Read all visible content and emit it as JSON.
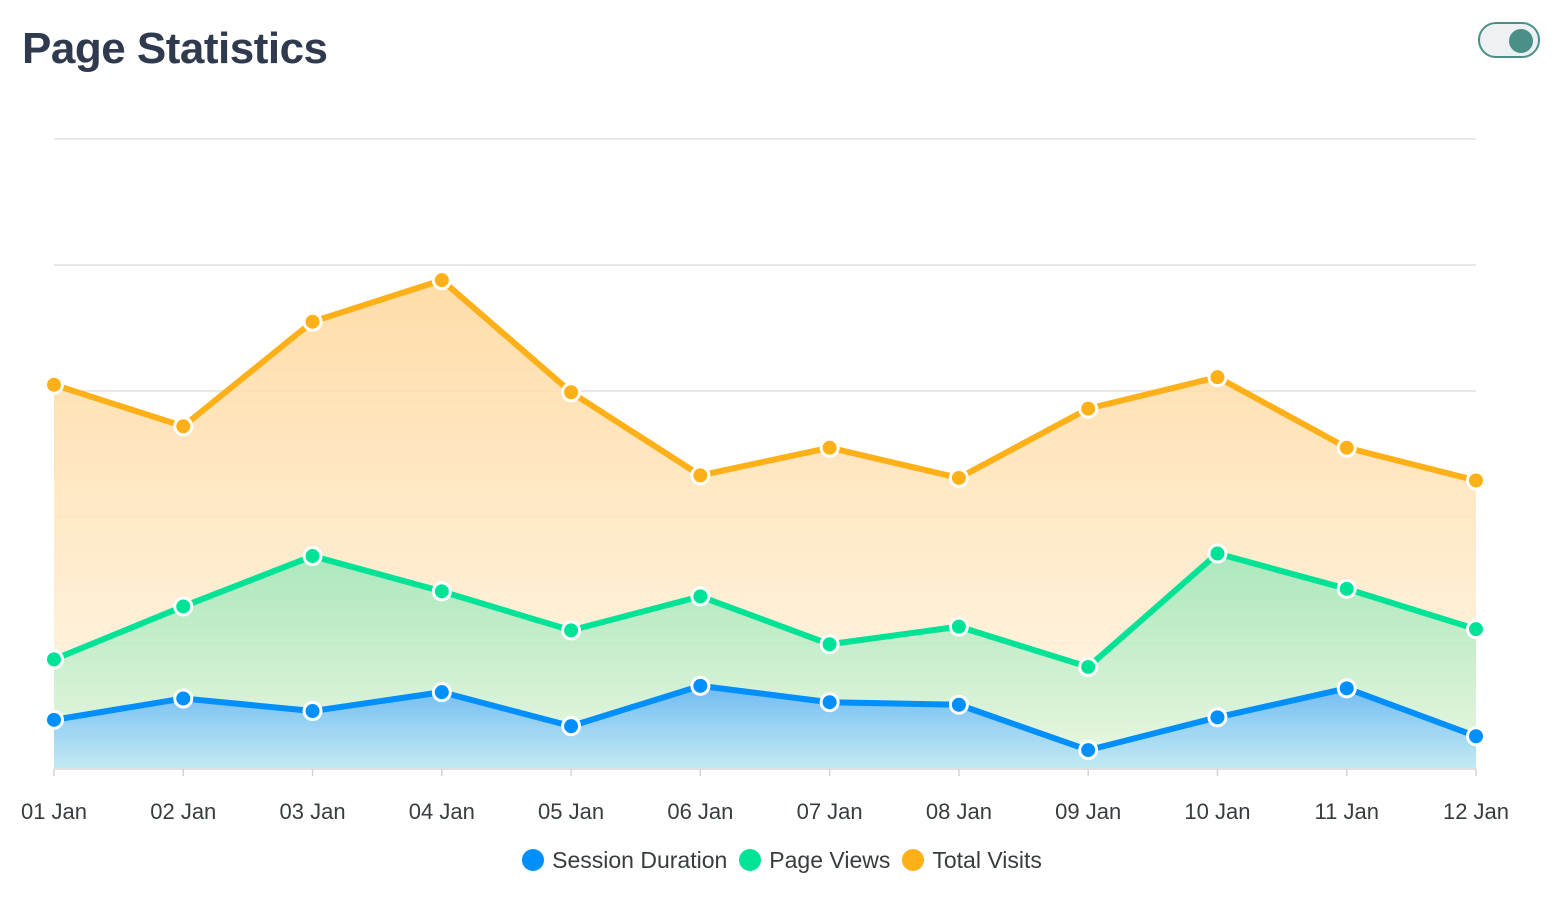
{
  "header": {
    "title": "Page Statistics"
  },
  "toggle": {
    "state": "on",
    "color": "#4a8f88"
  },
  "chart_data": {
    "type": "area",
    "stacked": true,
    "categories": [
      "01 Jan",
      "02 Jan",
      "03 Jan",
      "04 Jan",
      "05 Jan",
      "06 Jan",
      "07 Jan",
      "08 Jan",
      "09 Jan",
      "10 Jan",
      "11 Jan",
      "12 Jan"
    ],
    "series": [
      {
        "name": "Session Duration",
        "color": "#008ffb",
        "values": [
          39,
          56,
          46,
          61,
          34,
          66,
          53,
          51,
          15,
          41,
          64,
          26
        ]
      },
      {
        "name": "Page Views",
        "color": "#00e396",
        "values": [
          48,
          73,
          123,
          80,
          76,
          71,
          46,
          62,
          66,
          130,
          79,
          85
        ]
      },
      {
        "name": "Total Visits",
        "color": "#feb019",
        "values": [
          218,
          143,
          186,
          247,
          189,
          96,
          156,
          118,
          205,
          140,
          112,
          118
        ]
      }
    ],
    "ylim": [
      0,
      500
    ],
    "grid": true,
    "legend_position": "bottom"
  }
}
